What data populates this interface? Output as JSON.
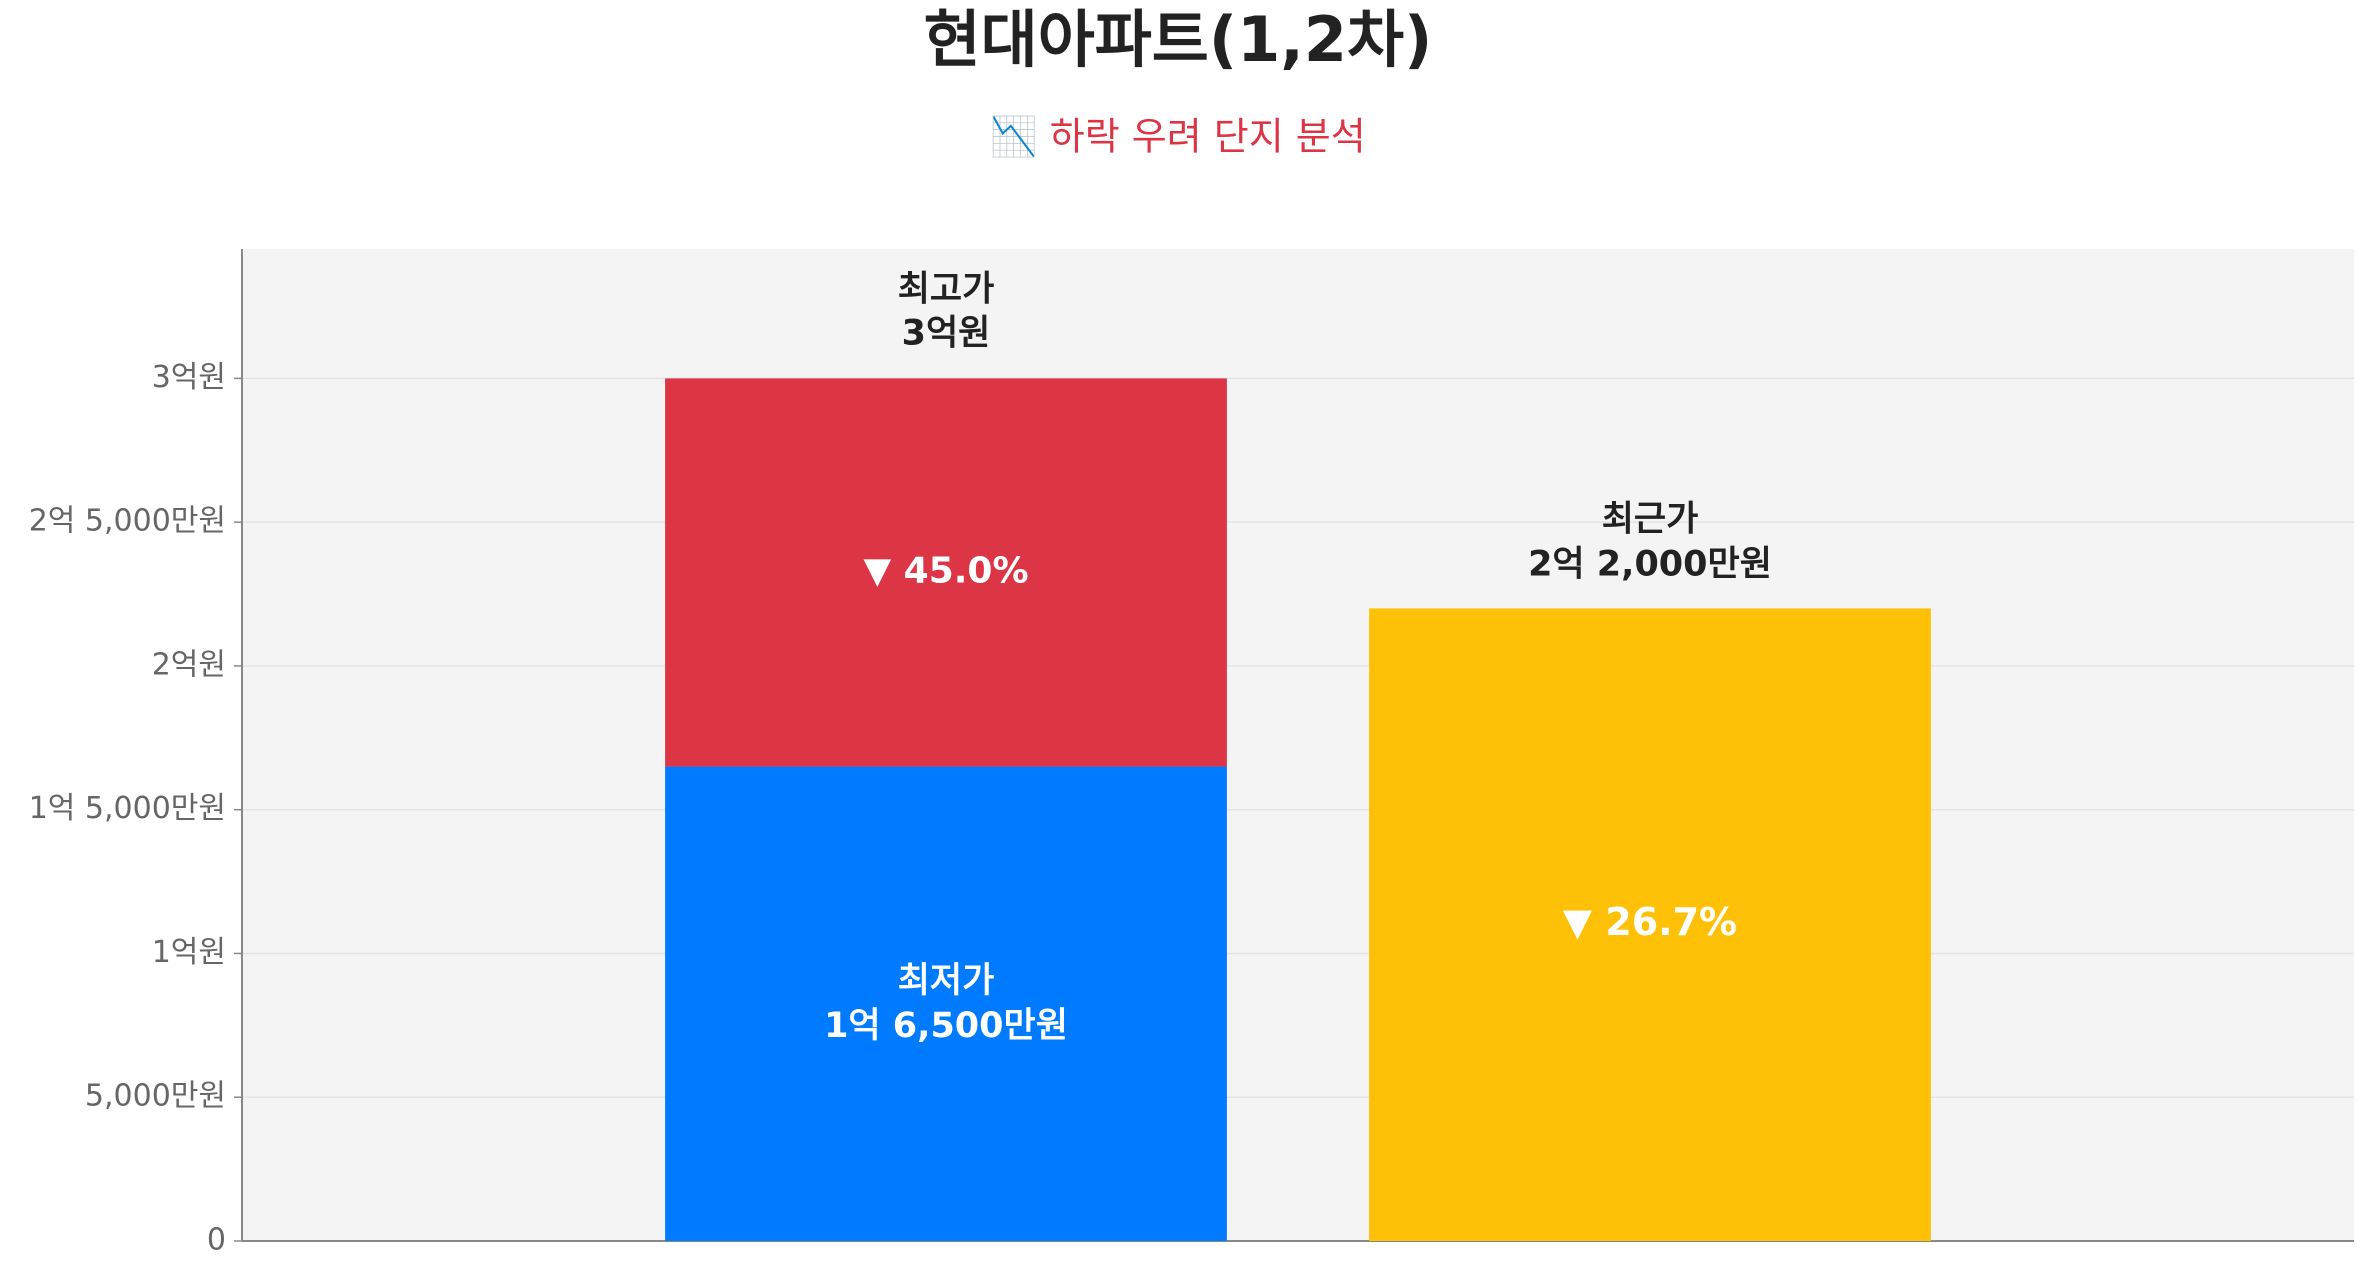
{
  "chart_data": {
    "type": "bar",
    "stacked": true,
    "title": "현대아파트(1,2차)",
    "subtitle": "📉 하락 우려 단지 분석",
    "categories": [
      null,
      null
    ],
    "series": [
      {
        "name": "최저가",
        "color": "#007bff",
        "values": [
          165000000,
          null
        ],
        "value_labels": [
          "1억 6,500만원",
          null
        ]
      },
      {
        "color": "#dc3545",
        "values": [
          135000000,
          null
        ]
      },
      {
        "name": "최근가",
        "color": "#ffc107",
        "values": [
          null,
          220000000
        ],
        "value_labels": [
          null,
          "2억 2,000만원"
        ]
      }
    ],
    "annotations": [
      "최고가",
      "3억원",
      "▼ 45.0%",
      "▼ 26.7%"
    ],
    "ylim": [
      0,
      345000000
    ],
    "yticks": [
      0,
      {
        "value": 50000000,
        "label": "5,000만원"
      },
      {
        "value": 100000000,
        "label": "1억원"
      },
      {
        "value": 150000000,
        "label": "1억 5,000만원"
      },
      {
        "value": 200000000,
        "label": "2억원"
      },
      {
        "value": 250000000,
        "label": "2억 5,000만원"
      },
      {
        "value": 300000000,
        "label": "3억원"
      }
    ],
    "grid": true
  }
}
